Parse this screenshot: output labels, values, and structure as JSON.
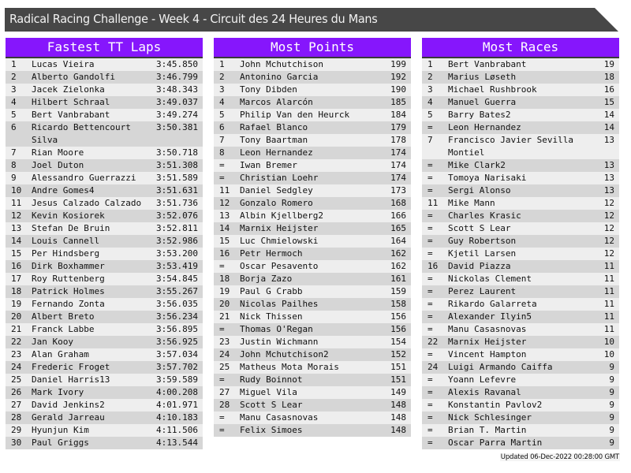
{
  "header": {
    "title": "Radical Racing Challenge - Week 4 - Circuit des 24 Heures du Mans"
  },
  "colors": {
    "header_bar": "#474747",
    "panel_header": "#8616fc",
    "row_light": "#eeeeee",
    "row_dark": "#d6d6d6"
  },
  "tables": [
    {
      "title": "Fastest TT Laps",
      "rows": [
        [
          "1",
          "Lucas Vieira",
          "3:45.850"
        ],
        [
          "2",
          "Alberto Gandolfi",
          "3:46.799"
        ],
        [
          "3",
          "Jacek Zielonka",
          "3:48.343"
        ],
        [
          "4",
          "Hilbert Schraal",
          "3:49.037"
        ],
        [
          "5",
          "Bert Vanbrabant",
          "3:49.274"
        ],
        [
          "6",
          "Ricardo Bettencourt Silva",
          "3:50.381"
        ],
        [
          "7",
          "Rian Moore",
          "3:50.718"
        ],
        [
          "8",
          "Joel Duton",
          "3:51.308"
        ],
        [
          "9",
          "Alessandro Guerrazzi",
          "3:51.589"
        ],
        [
          "10",
          "Andre Gomes4",
          "3:51.631"
        ],
        [
          "11",
          "Jesus Calzado Calzado",
          "3:51.736"
        ],
        [
          "12",
          "Kevin Kosiorek",
          "3:52.076"
        ],
        [
          "13",
          "Stefan De Bruin",
          "3:52.811"
        ],
        [
          "14",
          "Louis Cannell",
          "3:52.986"
        ],
        [
          "15",
          "Per Hindsberg",
          "3:53.200"
        ],
        [
          "16",
          "Dirk Boxhammer",
          "3:53.419"
        ],
        [
          "17",
          "Roy Ruttenberg",
          "3:54.845"
        ],
        [
          "18",
          "Patrick Holmes",
          "3:55.267"
        ],
        [
          "19",
          "Fernando Zonta",
          "3:56.035"
        ],
        [
          "20",
          "Albert Breto",
          "3:56.234"
        ],
        [
          "21",
          "Franck Labbe",
          "3:56.895"
        ],
        [
          "22",
          "Jan Kooy",
          "3:56.925"
        ],
        [
          "23",
          "Alan Graham",
          "3:57.034"
        ],
        [
          "24",
          "Frederic Froget",
          "3:57.702"
        ],
        [
          "25",
          "Daniel Harris13",
          "3:59.589"
        ],
        [
          "26",
          "Mark Ivory",
          "4:00.208"
        ],
        [
          "27",
          "David Jenkins2",
          "4:01.971"
        ],
        [
          "28",
          "Gerald Jarreau",
          "4:10.183"
        ],
        [
          "29",
          "Hyunjun Kim",
          "4:11.506"
        ],
        [
          "30",
          "Paul Griggs",
          "4:13.544"
        ]
      ]
    },
    {
      "title": "Most Points",
      "rows": [
        [
          "1",
          "John Mchutchison",
          "199"
        ],
        [
          "2",
          "Antonino Garcia",
          "192"
        ],
        [
          "3",
          "Tony Dibden",
          "190"
        ],
        [
          "4",
          "Marcos Alarcón",
          "185"
        ],
        [
          "5",
          "Philip Van den Heurck",
          "184"
        ],
        [
          "6",
          "Rafael Blanco",
          "179"
        ],
        [
          "7",
          "Tony Baartman",
          "178"
        ],
        [
          "8",
          "Leon Hernandez",
          "174"
        ],
        [
          "=",
          "Iwan Bremer",
          "174"
        ],
        [
          "=",
          "Christian Loehr",
          "174"
        ],
        [
          "11",
          "Daniel Sedgley",
          "173"
        ],
        [
          "12",
          "Gonzalo Romero",
          "168"
        ],
        [
          "13",
          "Albin Kjellberg2",
          "166"
        ],
        [
          "14",
          "Marnix Heijster",
          "165"
        ],
        [
          "15",
          "Luc Chmielowski",
          "164"
        ],
        [
          "16",
          "Petr Hermoch",
          "162"
        ],
        [
          "=",
          "Oscar Pesavento",
          "162"
        ],
        [
          "18",
          "Borja Zazo",
          "161"
        ],
        [
          "19",
          "Paul G Crabb",
          "159"
        ],
        [
          "20",
          "Nicolas Pailhes",
          "158"
        ],
        [
          "21",
          "Nick Thissen",
          "156"
        ],
        [
          "=",
          "Thomas O'Regan",
          "156"
        ],
        [
          "23",
          "Justin Wichmann",
          "154"
        ],
        [
          "24",
          "John Mchutchison2",
          "152"
        ],
        [
          "25",
          "Matheus Mota Morais",
          "151"
        ],
        [
          "=",
          "Rudy Boinnot",
          "151"
        ],
        [
          "27",
          "Miguel Vila",
          "149"
        ],
        [
          "28",
          "Scott S Lear",
          "148"
        ],
        [
          "=",
          "Manu Casasnovas",
          "148"
        ],
        [
          "=",
          "Felix Simoes",
          "148"
        ]
      ]
    },
    {
      "title": "Most Races",
      "rows": [
        [
          "1",
          "Bert Vanbrabant",
          "19"
        ],
        [
          "2",
          "Marius Løseth",
          "18"
        ],
        [
          "3",
          "Michael Rushbrook",
          "16"
        ],
        [
          "4",
          "Manuel Guerra",
          "15"
        ],
        [
          "5",
          "Barry Bates2",
          "14"
        ],
        [
          "=",
          "Leon Hernandez",
          "14"
        ],
        [
          "7",
          "Francisco Javier Sevilla Montiel",
          "13"
        ],
        [
          "=",
          "Mike Clark2",
          "13"
        ],
        [
          "=",
          "Tomoya Narisaki",
          "13"
        ],
        [
          "=",
          "Sergi Alonso",
          "13"
        ],
        [
          "11",
          "Mike Mann",
          "12"
        ],
        [
          "=",
          "Charles Krasic",
          "12"
        ],
        [
          "=",
          "Scott S Lear",
          "12"
        ],
        [
          "=",
          "Guy Robertson",
          "12"
        ],
        [
          "=",
          "Kjetil Larsen",
          "12"
        ],
        [
          "16",
          "David Piazza",
          "11"
        ],
        [
          "=",
          "Nickolas Clement",
          "11"
        ],
        [
          "=",
          "Perez Laurent",
          "11"
        ],
        [
          "=",
          "Rikardo Galarreta",
          "11"
        ],
        [
          "=",
          "Alexander Ilyin5",
          "11"
        ],
        [
          "=",
          "Manu Casasnovas",
          "11"
        ],
        [
          "22",
          "Marnix Heijster",
          "10"
        ],
        [
          "=",
          "Vincent Hampton",
          "10"
        ],
        [
          "24",
          "Luigi Armando Caiffa",
          "9"
        ],
        [
          "=",
          "Yoann Lefevre",
          "9"
        ],
        [
          "=",
          "Alexis Ravanal",
          "9"
        ],
        [
          "=",
          "Konstantin Pavlov2",
          "9"
        ],
        [
          "=",
          "Nick Schlesinger",
          "9"
        ],
        [
          "=",
          "Brian T. Martin",
          "9"
        ],
        [
          "=",
          "Oscar Parra Martin",
          "9"
        ]
      ]
    }
  ],
  "footer": {
    "updated": "Updated 06-Dec-2022 00:28:00 GMT"
  }
}
